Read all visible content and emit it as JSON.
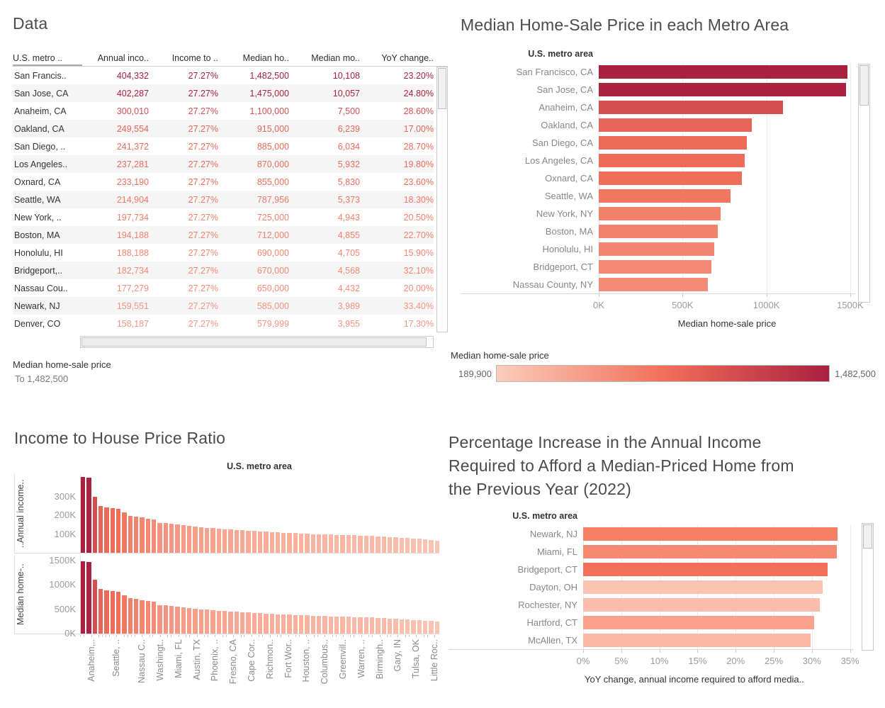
{
  "palette": {
    "gradient_domain": [
      189900,
      1482500
    ],
    "gradient_stops": [
      "#fbcdbb",
      "#f1705a",
      "#a8213f"
    ],
    "title_color": "#4b4b4b",
    "tick_color": "#9b9b9b",
    "bar_label_color": "#878787"
  },
  "legend": {
    "title": "Median home-sale price",
    "min_label": "189,900",
    "max_label": "1,482,500"
  },
  "chart_data": [
    {
      "type": "table",
      "title": "Data",
      "columns": [
        "U.S. metro ..",
        "Annual inco..",
        "Income to ..",
        "Median ho..",
        "Median mo..",
        "YoY change.."
      ],
      "rows": [
        [
          "San Francis..",
          "404,332",
          "27.27%",
          "1,482,500",
          "10,108",
          "23.20%"
        ],
        [
          "San Jose, CA",
          "402,287",
          "27.27%",
          "1,475,000",
          "10,057",
          "24.80%"
        ],
        [
          "Anaheim, CA",
          "300,010",
          "27.27%",
          "1,100,000",
          "7,500",
          "28.60%"
        ],
        [
          "Oakland, CA",
          "249,554",
          "27.27%",
          "915,000",
          "6,239",
          "17.00%"
        ],
        [
          "San Diego, ..",
          "241,372",
          "27.27%",
          "885,000",
          "6,034",
          "28.70%"
        ],
        [
          "Los Angeles..",
          "237,281",
          "27.27%",
          "870,000",
          "5,932",
          "19.80%"
        ],
        [
          "Oxnard, CA",
          "233,190",
          "27.27%",
          "855,000",
          "5,830",
          "23.60%"
        ],
        [
          "Seattle, WA",
          "214,904",
          "27.27%",
          "787,956",
          "5,373",
          "18.30%"
        ],
        [
          "New York, ..",
          "197,734",
          "27.27%",
          "725,000",
          "4,943",
          "20.50%"
        ],
        [
          "Boston, MA",
          "194,188",
          "27.27%",
          "712,000",
          "4,855",
          "22.70%"
        ],
        [
          "Honolulu, HI",
          "188,188",
          "27.27%",
          "690,000",
          "4,705",
          "15.90%"
        ],
        [
          "Bridgeport,..",
          "182,734",
          "27.27%",
          "670,000",
          "4,568",
          "32.10%"
        ],
        [
          "Nassau Cou..",
          "177,279",
          "27.27%",
          "650,000",
          "4,432",
          "20.00%"
        ],
        [
          "Newark, NJ",
          "159,551",
          "27.27%",
          "585,000",
          "3,989",
          "33.40%"
        ],
        [
          "Denver, CO",
          "158,187",
          "27.27%",
          "579,999",
          "3,955",
          "17.30%"
        ]
      ],
      "row_color_values": [
        1482500,
        1475000,
        1100000,
        915000,
        885000,
        870000,
        855000,
        787956,
        725000,
        712000,
        690000,
        670000,
        650000,
        585000,
        579999
      ],
      "caption_title": "Median home-sale price",
      "caption_sub": "To 1,482,500"
    },
    {
      "type": "bar",
      "orientation": "horizontal",
      "title": "Median Home-Sale Price in each Metro Area",
      "col_header": "U.S. metro area",
      "categories": [
        "San Francisco, CA",
        "San Jose, CA",
        "Anaheim, CA",
        "Oakland, CA",
        "San Diego, CA",
        "Los Angeles, CA",
        "Oxnard, CA",
        "Seattle, WA",
        "New York, NY",
        "Boston, MA",
        "Honolulu, HI",
        "Bridgeport, CT",
        "Nassau County, NY"
      ],
      "values": [
        1482500,
        1475000,
        1100000,
        915000,
        885000,
        870000,
        855000,
        787956,
        725000,
        712000,
        690000,
        670000,
        650000
      ],
      "xlabel": "Median home-sale price",
      "xlim": [
        0,
        1530000
      ],
      "xticks": [
        {
          "label": "0K",
          "value": 0
        },
        {
          "label": "500K",
          "value": 500000
        },
        {
          "label": "1000K",
          "value": 1000000
        },
        {
          "label": "1500K",
          "value": 1500000
        }
      ]
    },
    {
      "type": "bar",
      "orientation": "vertical",
      "title": "Income to House Price Ratio",
      "col_header": "U.S. metro area",
      "series": [
        {
          "name": "..Annual income..",
          "unit": "K",
          "ylim": [
            0,
            420
          ],
          "yticks": [
            {
              "label": "300K",
              "value": 300
            },
            {
              "label": "200K",
              "value": 200
            },
            {
              "label": "100K",
              "value": 100
            }
          ],
          "values": [
            404.3,
            402.3,
            300.0,
            249.6,
            241.4,
            237.3,
            233.2,
            214.9,
            197.7,
            194.2,
            188.2,
            182.7,
            177.3,
            159.6,
            158.2,
            155,
            150,
            147,
            144,
            140,
            137,
            134,
            131,
            128,
            126,
            124,
            122,
            120,
            118,
            116,
            114,
            112,
            110,
            108,
            107,
            106,
            105,
            104,
            102,
            100,
            99,
            98,
            97,
            96,
            95,
            94,
            93,
            92,
            91,
            90,
            88,
            86,
            84,
            82,
            80,
            78,
            76,
            74,
            72,
            70,
            66
          ]
        },
        {
          "name": "Median home-..",
          "unit": "K",
          "ylim": [
            0,
            1600
          ],
          "yticks": [
            {
              "label": "1500K",
              "value": 1500
            },
            {
              "label": "1000K",
              "value": 1000
            },
            {
              "label": "500K",
              "value": 500
            },
            {
              "label": "0K",
              "value": 0
            }
          ],
          "values": [
            1482.5,
            1475,
            1100,
            915,
            885,
            870,
            855,
            788,
            725,
            712,
            690,
            670,
            650,
            585,
            580,
            568,
            550,
            539,
            528,
            513,
            502,
            491,
            480,
            469,
            462,
            455,
            447,
            440,
            433,
            425,
            418,
            411,
            403,
            396,
            392,
            389,
            385,
            381,
            374,
            367,
            363,
            359,
            356,
            352,
            348,
            345,
            341,
            337,
            334,
            330,
            323,
            315,
            308,
            301,
            293,
            286,
            279,
            271,
            264,
            257,
            242
          ]
        }
      ],
      "x_tick_labels": [
        {
          "index": 2,
          "label": "Anaheim,.."
        },
        {
          "index": 7,
          "label": "Seattle, .."
        },
        {
          "index": 12,
          "label": "Nassau C.."
        },
        {
          "index": 15,
          "label": "Washingt.."
        },
        {
          "index": 18,
          "label": "Miami, FL"
        },
        {
          "index": 21,
          "label": "Austin, TX"
        },
        {
          "index": 24,
          "label": "Phoenix, .."
        },
        {
          "index": 27,
          "label": "Fresno, CA"
        },
        {
          "index": 30,
          "label": "Cape Cor.."
        },
        {
          "index": 33,
          "label": "Richmon.."
        },
        {
          "index": 36,
          "label": "Fort Wor.."
        },
        {
          "index": 39,
          "label": "Houston, .."
        },
        {
          "index": 42,
          "label": "Columbus.."
        },
        {
          "index": 45,
          "label": "Greenvill.."
        },
        {
          "index": 48,
          "label": "Warren, .."
        },
        {
          "index": 51,
          "label": "Birmingh.."
        },
        {
          "index": 54,
          "label": "Gary, IN"
        },
        {
          "index": 57,
          "label": "Tulsa, OK"
        },
        {
          "index": 60,
          "label": "Little Roc.."
        }
      ]
    },
    {
      "type": "bar",
      "orientation": "horizontal",
      "title": "Percentage Increase in the Annual Income Required to Afford a Median-Priced Home from the Previous Year (2022)",
      "title_lines": [
        "Percentage Increase in the Annual Income",
        "Required to Afford a Median-Priced Home from",
        "the Previous Year (2022)"
      ],
      "col_header": "U.S. metro area",
      "bars": [
        {
          "label": "Newark, NJ",
          "value": 33.4,
          "color": "#f58066"
        },
        {
          "label": "Miami, FL",
          "value": 33.3,
          "color": "#f68a70"
        },
        {
          "label": "Bridgeport, CT",
          "value": 32.1,
          "color": "#f3705a"
        },
        {
          "label": "Dayton, OH",
          "value": 31.4,
          "color": "#fac3b2"
        },
        {
          "label": "Rochester, NY",
          "value": 31.0,
          "color": "#fbbdab"
        },
        {
          "label": "Hartford, CT",
          "value": 30.3,
          "color": "#fba28c"
        },
        {
          "label": "McAllen, TX",
          "value": 29.8,
          "color": "#fbb8a6"
        }
      ],
      "xlim": [
        0,
        35.5
      ],
      "xticks": [
        {
          "label": "0%",
          "value": 0
        },
        {
          "label": "5%",
          "value": 5
        },
        {
          "label": "10%",
          "value": 10
        },
        {
          "label": "15%",
          "value": 15
        },
        {
          "label": "20%",
          "value": 20
        },
        {
          "label": "25%",
          "value": 25
        },
        {
          "label": "30%",
          "value": 30
        },
        {
          "label": "35%",
          "value": 35
        }
      ],
      "xlabel": "YoY change, annual income required to afford media.."
    }
  ]
}
